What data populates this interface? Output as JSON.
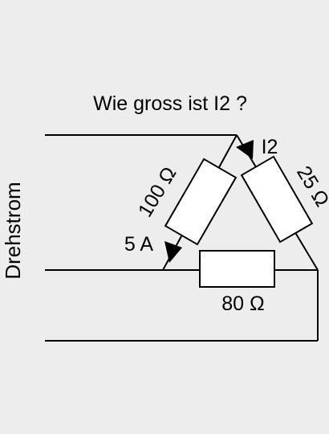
{
  "question": "Wie gross ist I2 ?",
  "side_label": "Drehstrom",
  "resistors": {
    "left": {
      "label": "100 Ω"
    },
    "right": {
      "label": "25 Ω"
    },
    "bottom": {
      "label": "80 Ω"
    }
  },
  "currents": {
    "known": {
      "label": "5 A"
    },
    "unknown": {
      "label": "I2"
    }
  },
  "colors": {
    "background": "#ededed",
    "stroke": "#000000",
    "resistor_fill": "#ffffff"
  }
}
